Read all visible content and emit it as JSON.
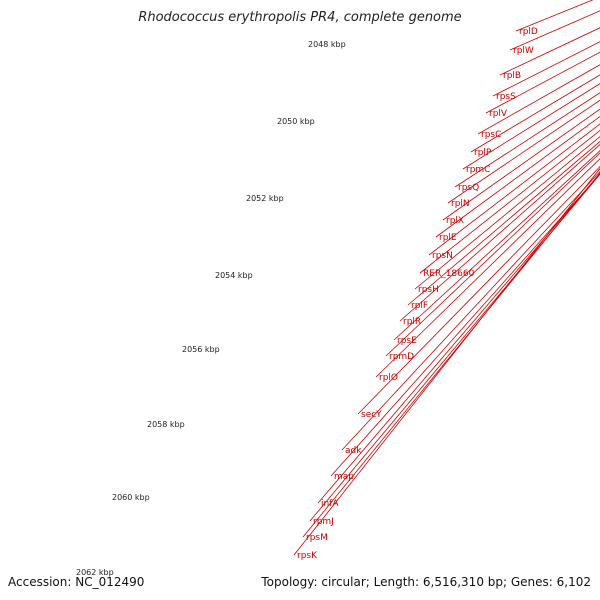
{
  "title": "Rhodococcus erythropolis PR4, complete genome",
  "accession": "Accession: NC_012490",
  "summary": "Topology: circular; Length: 6,516,310 bp; Genes: 6,102",
  "kbp_ticks": [
    "2048 kbp",
    "2050 kbp",
    "2052 kbp",
    "2054 kbp",
    "2056 kbp",
    "2058 kbp",
    "2060 kbp",
    "2062 kbp"
  ],
  "genes": [
    "rplD",
    "rplW",
    "rplB",
    "rpsS",
    "rplV",
    "rpsC",
    "rplP",
    "rpmC",
    "rpsQ",
    "rplN",
    "rplX",
    "rplE",
    "rpsN",
    "RER_18660",
    "rpsH",
    "rplF",
    "rplR",
    "rpsE",
    "rpmD",
    "rplO",
    "secY",
    "adk",
    "map",
    "infA",
    "rpmJ",
    "rpsM",
    "rpsK"
  ],
  "colors": {
    "cds": "#ee1111",
    "rna": "#f4a0a0",
    "secY": "#99ee33",
    "adk": "#11aaee",
    "orange": "#ff9900",
    "backbone": "#888888",
    "ticks": "#118811",
    "labels": "#cc0000"
  }
}
